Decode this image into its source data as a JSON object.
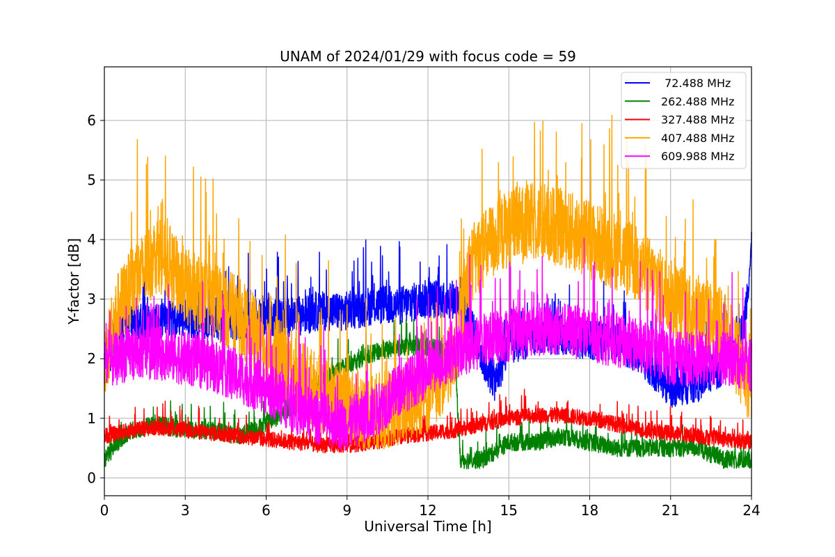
{
  "chart_data": {
    "type": "line",
    "title": "UNAM of 2024/01/29 with focus code = 59",
    "xlabel": "Universal Time [h]",
    "ylabel": "Y-factor [dB]",
    "xlim": [
      0,
      24
    ],
    "ylim": [
      -0.3,
      6.9
    ],
    "xticks": [
      0,
      3,
      6,
      9,
      12,
      15,
      18,
      21,
      24
    ],
    "yticks": [
      0,
      1,
      2,
      3,
      4,
      5,
      6
    ],
    "grid": true,
    "legend_position": "top-right",
    "series": [
      {
        "name": " 72.488 MHz",
        "color": "#0000ff",
        "noise": 0.55,
        "points": [
          [
            0,
            1.8
          ],
          [
            0.5,
            2.5
          ],
          [
            1,
            2.6
          ],
          [
            2,
            2.6
          ],
          [
            3,
            2.7
          ],
          [
            4,
            2.6
          ],
          [
            5,
            2.6
          ],
          [
            6,
            2.7
          ],
          [
            7,
            2.7
          ],
          [
            8,
            2.8
          ],
          [
            9,
            2.8
          ],
          [
            10,
            2.9
          ],
          [
            11,
            2.9
          ],
          [
            12,
            3.0
          ],
          [
            13,
            3.0
          ],
          [
            13.5,
            2.7
          ],
          [
            14,
            2.0
          ],
          [
            14.5,
            1.6
          ],
          [
            15,
            2.2
          ],
          [
            16,
            2.4
          ],
          [
            17,
            2.4
          ],
          [
            18,
            2.3
          ],
          [
            19,
            2.3
          ],
          [
            20,
            2.0
          ],
          [
            21,
            1.5
          ],
          [
            22,
            1.6
          ],
          [
            23,
            1.9
          ],
          [
            23.7,
            2.5
          ],
          [
            24,
            3.8
          ]
        ]
      },
      {
        "name": "262.488 MHz",
        "color": "#008000",
        "noise": 0.25,
        "points": [
          [
            0,
            0.3
          ],
          [
            0.5,
            0.6
          ],
          [
            1,
            0.8
          ],
          [
            2,
            0.9
          ],
          [
            3,
            0.8
          ],
          [
            4,
            0.8
          ],
          [
            5,
            0.7
          ],
          [
            6,
            0.9
          ],
          [
            7,
            1.2
          ],
          [
            8,
            1.6
          ],
          [
            9,
            1.9
          ],
          [
            10,
            2.1
          ],
          [
            11,
            2.2
          ],
          [
            12,
            2.2
          ],
          [
            13,
            2.1
          ],
          [
            13.2,
            0.3
          ],
          [
            14,
            0.3
          ],
          [
            15,
            0.6
          ],
          [
            16,
            0.6
          ],
          [
            17,
            0.7
          ],
          [
            18,
            0.6
          ],
          [
            19,
            0.5
          ],
          [
            20,
            0.5
          ],
          [
            21,
            0.5
          ],
          [
            22,
            0.5
          ],
          [
            23,
            0.3
          ],
          [
            24,
            0.3
          ]
        ]
      },
      {
        "name": "327.488 MHz",
        "color": "#ff0000",
        "noise": 0.22,
        "points": [
          [
            0,
            0.7
          ],
          [
            1,
            0.8
          ],
          [
            2,
            0.85
          ],
          [
            3,
            0.8
          ],
          [
            4,
            0.75
          ],
          [
            5,
            0.7
          ],
          [
            6,
            0.65
          ],
          [
            7,
            0.6
          ],
          [
            8,
            0.55
          ],
          [
            9,
            0.55
          ],
          [
            10,
            0.6
          ],
          [
            11,
            0.7
          ],
          [
            12,
            0.75
          ],
          [
            13,
            0.8
          ],
          [
            14,
            0.9
          ],
          [
            15,
            1.0
          ],
          [
            16,
            1.05
          ],
          [
            17,
            1.05
          ],
          [
            18,
            1.0
          ],
          [
            19,
            0.9
          ],
          [
            20,
            0.8
          ],
          [
            21,
            0.75
          ],
          [
            22,
            0.7
          ],
          [
            23,
            0.65
          ],
          [
            24,
            0.6
          ]
        ]
      },
      {
        "name": "407.488 MHz",
        "color": "#ffa500",
        "noise": 1.1,
        "points": [
          [
            0,
            2.0
          ],
          [
            0.5,
            2.8
          ],
          [
            1,
            3.2
          ],
          [
            2,
            3.8
          ],
          [
            3,
            3.2
          ],
          [
            4,
            3.0
          ],
          [
            5,
            2.7
          ],
          [
            6,
            2.2
          ],
          [
            7,
            1.8
          ],
          [
            8,
            1.4
          ],
          [
            9,
            1.2
          ],
          [
            10,
            1.1
          ],
          [
            11,
            1.2
          ],
          [
            12,
            1.4
          ],
          [
            13,
            2.0
          ],
          [
            13.5,
            3.5
          ],
          [
            14,
            3.8
          ],
          [
            15,
            4.2
          ],
          [
            16,
            4.3
          ],
          [
            17,
            4.2
          ],
          [
            18,
            4.0
          ],
          [
            19,
            3.8
          ],
          [
            20,
            3.5
          ],
          [
            21,
            3.0
          ],
          [
            22,
            2.8
          ],
          [
            23,
            2.5
          ],
          [
            24,
            1.5
          ]
        ]
      },
      {
        "name": "609.988 MHz",
        "color": "#ff00ff",
        "noise": 0.75,
        "points": [
          [
            0,
            1.9
          ],
          [
            1,
            2.1
          ],
          [
            2,
            2.1
          ],
          [
            3,
            2.0
          ],
          [
            4,
            1.9
          ],
          [
            5,
            1.7
          ],
          [
            6,
            1.5
          ],
          [
            7,
            1.2
          ],
          [
            8,
            1.0
          ],
          [
            9,
            0.9
          ],
          [
            10,
            1.1
          ],
          [
            11,
            1.5
          ],
          [
            12,
            1.8
          ],
          [
            13,
            2.1
          ],
          [
            14,
            2.3
          ],
          [
            15,
            2.4
          ],
          [
            16,
            2.5
          ],
          [
            17,
            2.5
          ],
          [
            18,
            2.4
          ],
          [
            19,
            2.3
          ],
          [
            20,
            2.2
          ],
          [
            21,
            2.0
          ],
          [
            22,
            2.0
          ],
          [
            23,
            2.0
          ],
          [
            24,
            1.9
          ]
        ]
      }
    ]
  }
}
